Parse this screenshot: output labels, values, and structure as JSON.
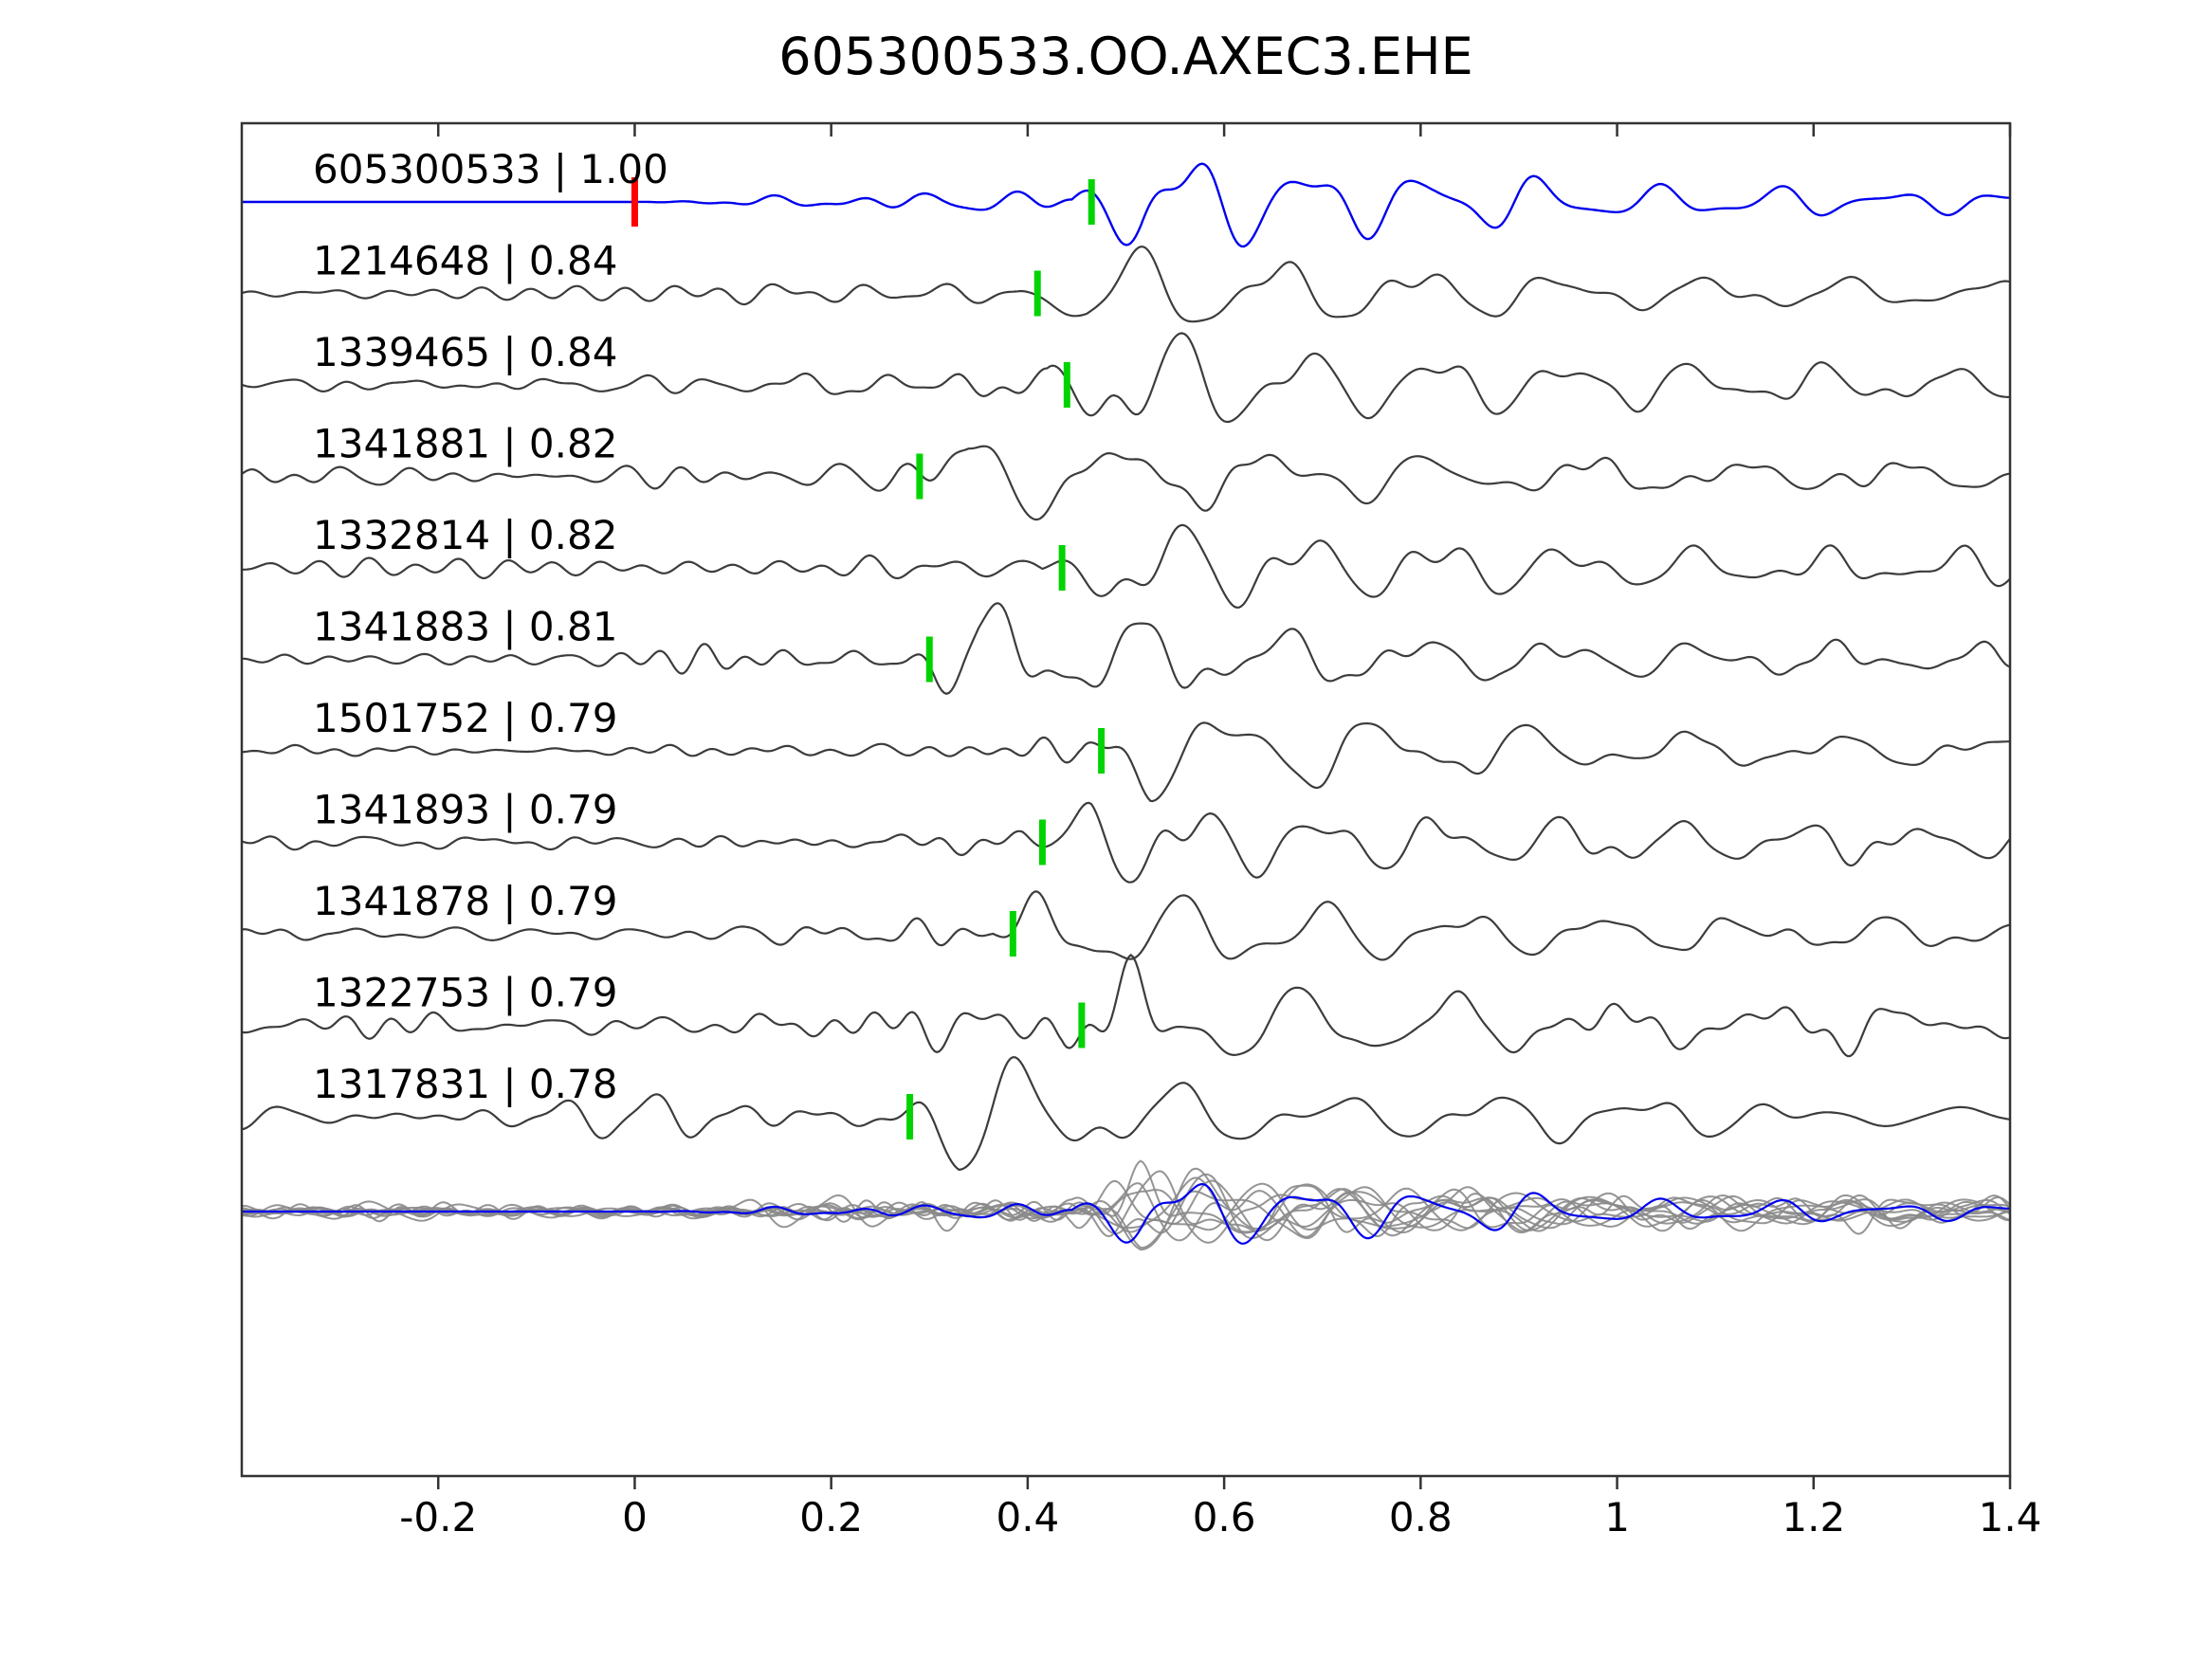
{
  "chart_data": {
    "type": "line",
    "title": "605300533.OO.AXEC3.EHE",
    "xlabel": "",
    "ylabel": "",
    "x_range": [
      -0.4,
      1.4
    ],
    "x_ticks": [
      -0.2,
      0,
      0.2,
      0.4,
      0.6,
      0.8,
      1,
      1.2,
      1.4
    ],
    "x_tick_labels": [
      "-0.2",
      "0",
      "0.2",
      "0.4",
      "0.6",
      "0.8",
      "1",
      "1.2",
      "1.4"
    ],
    "grid": false,
    "legend": "none",
    "description": "Template waveform (blue, top) compared against 10 matched event waveforms (dark gray), each labeled 'event_id | correlation'. Green bars mark pick times, red bar marks template zero time. Bottom row overlays all aligned traces (gray) with the template (blue).",
    "colors": {
      "template_trace": "#0000ee",
      "match_trace": "#3c3c3c",
      "overlay_trace": "#8a8a8a",
      "pick_marker": "#00d400",
      "reference_marker": "#ff0000",
      "axis": "#333333",
      "text": "#000000"
    },
    "traces": [
      {
        "id": "605300533",
        "corr": "1.00",
        "label": "605300533 | 1.00",
        "is_template": true,
        "pick": 0.465,
        "ref_mark": 0.0,
        "noise_amp": 4,
        "arr_amp": 58,
        "coda": 13
      },
      {
        "id": "1214648",
        "corr": "0.84",
        "label": "1214648 | 0.84",
        "is_template": false,
        "pick": 0.41,
        "noise_amp": 7,
        "arr_amp": 52,
        "coda": 15
      },
      {
        "id": "1339465",
        "corr": "0.84",
        "label": "1339465 | 0.84",
        "is_template": false,
        "pick": 0.44,
        "noise_amp": 7.5,
        "arr_amp": 55,
        "coda": 15
      },
      {
        "id": "1341881",
        "corr": "0.82",
        "label": "1341881 | 0.82",
        "is_template": false,
        "pick": 0.29,
        "noise_amp": 8,
        "arr_amp": 50,
        "coda": 15
      },
      {
        "id": "1332814",
        "corr": "0.82",
        "label": "1332814 | 0.82",
        "is_template": false,
        "pick": 0.435,
        "noise_amp": 8.5,
        "arr_amp": 52,
        "coda": 16
      },
      {
        "id": "1341883",
        "corr": "0.81",
        "label": "1341883 | 0.81",
        "is_template": false,
        "pick": 0.3,
        "noise_amp": 7,
        "arr_amp": 56,
        "coda": 15
      },
      {
        "id": "1501752",
        "corr": "0.79",
        "label": "1501752 | 0.79",
        "is_template": false,
        "pick": 0.475,
        "noise_amp": 5,
        "arr_amp": 52,
        "coda": 14
      },
      {
        "id": "1341893",
        "corr": "0.79",
        "label": "1341893 | 0.79",
        "is_template": false,
        "pick": 0.415,
        "noise_amp": 6.5,
        "arr_amp": 54,
        "coda": 15
      },
      {
        "id": "1341878",
        "corr": "0.79",
        "label": "1341878 | 0.79",
        "is_template": false,
        "pick": 0.385,
        "noise_amp": 6,
        "arr_amp": 52,
        "coda": 15
      },
      {
        "id": "1322753",
        "corr": "0.79",
        "label": "1322753 | 0.79",
        "is_template": false,
        "pick": 0.455,
        "noise_amp": 11,
        "arr_amp": 56,
        "coda": 16
      },
      {
        "id": "1317831",
        "corr": "0.78",
        "label": "1317831 | 0.78",
        "is_template": false,
        "pick": 0.28,
        "noise_amp": 11,
        "arr_amp": 52,
        "coda": 16
      }
    ],
    "overlay_row": {
      "aligned_on_picks": true,
      "contains": "all 11 traces overlaid, matches in gray, template in blue"
    }
  }
}
